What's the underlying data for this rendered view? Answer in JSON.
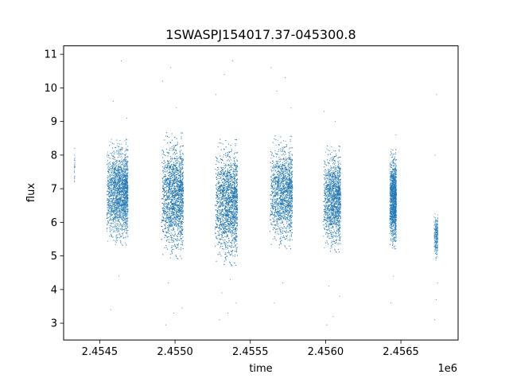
{
  "chart_data": {
    "type": "scatter",
    "title": "1SWASPJ154017.37-045300.8",
    "xlabel": "time",
    "ylabel": "flux",
    "x_offset_label": "1e6",
    "xlim": [
      2454260,
      2456880
    ],
    "ylim": [
      2.5,
      11.25
    ],
    "xticks": [
      2454500,
      2455000,
      2455500,
      2456000,
      2456500
    ],
    "xtick_labels": [
      "2.4545",
      "2.4550",
      "2.4555",
      "2.4560",
      "2.4565"
    ],
    "yticks": [
      3,
      4,
      5,
      6,
      7,
      8,
      9,
      10,
      11
    ],
    "ytick_labels": [
      "3",
      "4",
      "5",
      "6",
      "7",
      "8",
      "9",
      "10",
      "11"
    ],
    "point_color": "#1f77b4",
    "grid": false,
    "legend": "none",
    "seasons": [
      {
        "x_start": 2454330,
        "x_end": 2454335,
        "y_center": 7.6,
        "y_spread": 1.0,
        "points": 25,
        "outliers": []
      },
      {
        "x_start": 2454545,
        "x_end": 2454688,
        "y_center": 6.9,
        "y_spread": 1.6,
        "points": 2600,
        "outliers": [
          3.4,
          4.4,
          9.1,
          9.6,
          10.8
        ]
      },
      {
        "x_start": 2454910,
        "x_end": 2455055,
        "y_center": 6.8,
        "y_spread": 1.9,
        "points": 3300,
        "outliers": [
          2.95,
          3.3,
          3.45,
          4.2,
          9.4,
          10.2,
          10.6
        ]
      },
      {
        "x_start": 2455265,
        "x_end": 2455415,
        "y_center": 6.6,
        "y_spread": 1.9,
        "points": 3400,
        "outliers": [
          3.1,
          3.3,
          3.6,
          3.9,
          4.3,
          9.8,
          10.4,
          10.8
        ]
      },
      {
        "x_start": 2455630,
        "x_end": 2455780,
        "y_center": 6.9,
        "y_spread": 1.7,
        "points": 2600,
        "outliers": [
          3.6,
          4.2,
          9.4,
          9.9,
          10.3,
          10.6
        ]
      },
      {
        "x_start": 2455985,
        "x_end": 2456100,
        "y_center": 6.7,
        "y_spread": 1.6,
        "points": 2300,
        "outliers": [
          2.95,
          3.2,
          3.8,
          4.1,
          9.0,
          9.3
        ]
      },
      {
        "x_start": 2456425,
        "x_end": 2456470,
        "y_center": 6.7,
        "y_spread": 1.5,
        "points": 1700,
        "outliers": [
          3.6,
          4.4,
          8.6
        ]
      },
      {
        "x_start": 2456720,
        "x_end": 2456745,
        "y_center": 5.6,
        "y_spread": 0.8,
        "points": 260,
        "outliers": [
          3.1,
          3.7,
          4.2,
          8.0,
          9.8
        ]
      }
    ]
  }
}
